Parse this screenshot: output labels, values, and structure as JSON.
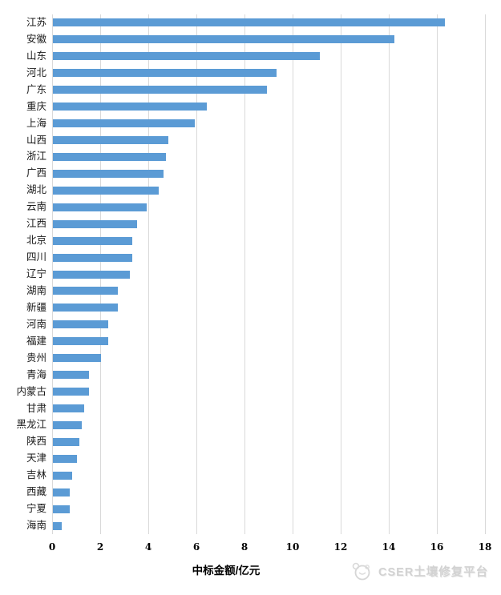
{
  "chart_data": {
    "type": "bar",
    "orientation": "horizontal",
    "title": "",
    "xlabel": "中标金额/亿元",
    "ylabel": "",
    "xlim": [
      0,
      18
    ],
    "xticks": [
      0,
      2,
      4,
      6,
      8,
      10,
      12,
      14,
      16,
      18
    ],
    "grid": true,
    "legend": "none",
    "categories": [
      "江苏",
      "安徽",
      "山东",
      "河北",
      "广东",
      "重庆",
      "上海",
      "山西",
      "浙江",
      "广西",
      "湖北",
      "云南",
      "江西",
      "北京",
      "四川",
      "辽宁",
      "湖南",
      "新疆",
      "河南",
      "福建",
      "贵州",
      "青海",
      "内蒙古",
      "甘肃",
      "黑龙江",
      "陕西",
      "天津",
      "吉林",
      "西藏",
      "宁夏",
      "海南"
    ],
    "values": [
      16.3,
      14.2,
      11.1,
      9.3,
      8.9,
      6.4,
      5.9,
      4.8,
      4.7,
      4.6,
      4.4,
      3.9,
      3.5,
      3.3,
      3.3,
      3.2,
      2.7,
      2.7,
      2.3,
      2.3,
      2.0,
      1.5,
      1.5,
      1.3,
      1.2,
      1.1,
      1.0,
      0.8,
      0.7,
      0.7,
      0.35
    ]
  },
  "colors": {
    "bar": "#5b9bd5",
    "grid": "#d9d9d9"
  },
  "watermark": {
    "text": "CSER土壤修复平台",
    "icon": "cser-logo"
  }
}
